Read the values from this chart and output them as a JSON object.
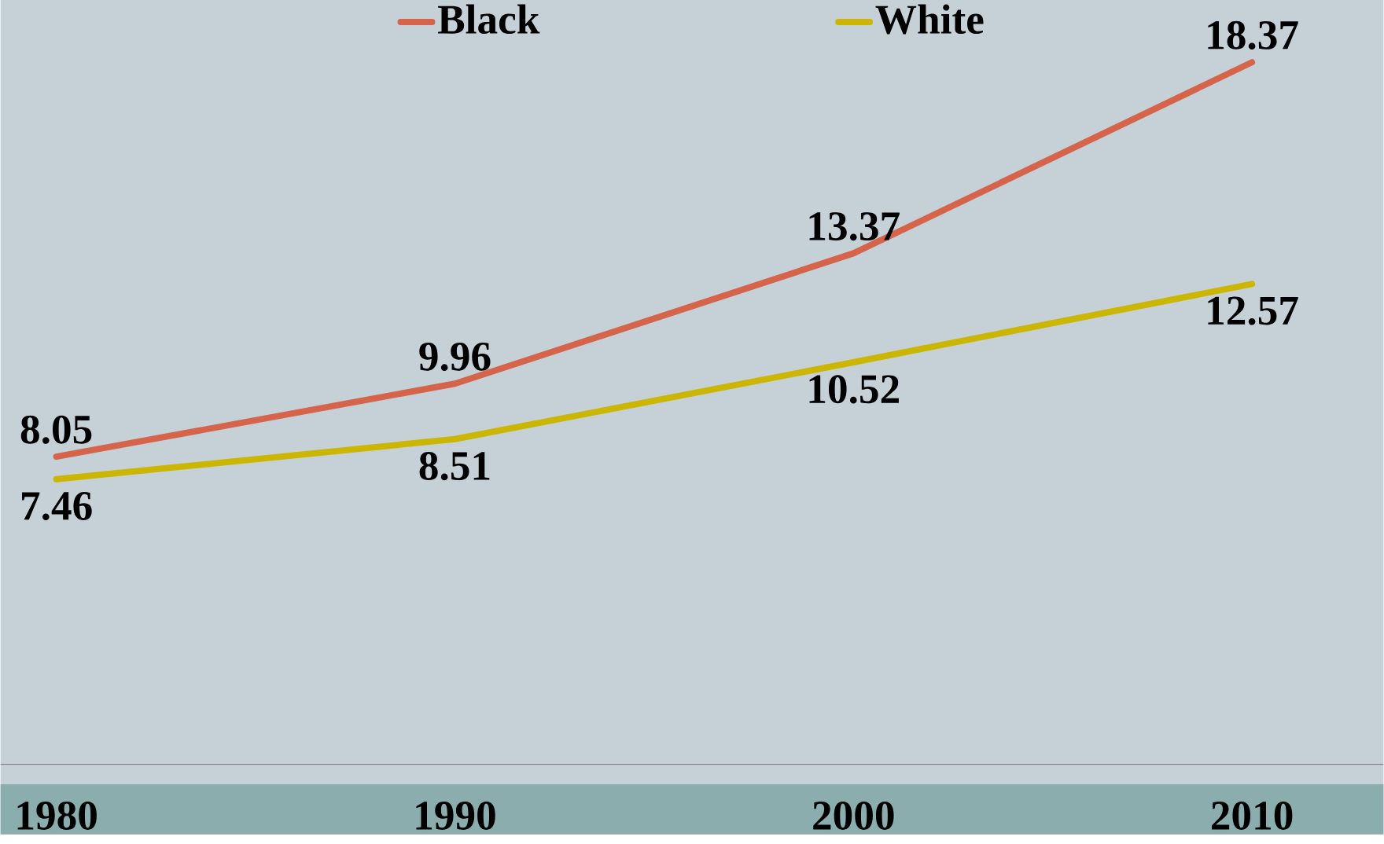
{
  "chart_data": {
    "type": "line",
    "categories": [
      "1980",
      "1990",
      "2000",
      "2010"
    ],
    "series": [
      {
        "name": "Black",
        "color": "#d5644b",
        "values": [
          8.05,
          9.96,
          13.37,
          18.37
        ]
      },
      {
        "name": "White",
        "color": "#cbb703",
        "values": [
          7.46,
          8.51,
          10.52,
          12.57
        ]
      }
    ],
    "ylim": [
      0,
      20
    ],
    "data_labels": true,
    "legend": "top",
    "tick_labels": "x",
    "marker": "none",
    "line_style": "solid",
    "grid": false
  }
}
